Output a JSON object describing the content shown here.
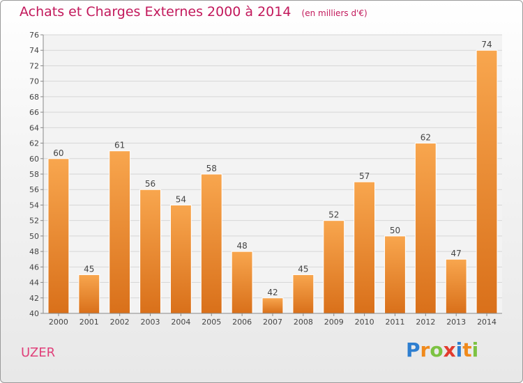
{
  "header": {
    "title": "Achats et Charges Externes 2000 à 2014",
    "subtitle": "(en milliers d'€)"
  },
  "footer": {
    "town": "UZER",
    "logo_letters": [
      "P",
      "r",
      "o",
      "x",
      "i",
      "t",
      "i"
    ],
    "logo_colors": [
      "#2f7fd0",
      "#f08a1c",
      "#7cc242",
      "#e23b2e",
      "#2f7fd0",
      "#f08a1c",
      "#7cc242"
    ]
  },
  "chart_data": {
    "type": "bar",
    "title": "Achats et Charges Externes 2000 à 2014",
    "subtitle": "(en milliers d'€)",
    "categories": [
      "2000",
      "2001",
      "2002",
      "2003",
      "2004",
      "2005",
      "2006",
      "2007",
      "2008",
      "2009",
      "2010",
      "2011",
      "2012",
      "2013",
      "2014"
    ],
    "values": [
      60,
      45,
      61,
      56,
      54,
      58,
      48,
      42,
      45,
      52,
      57,
      50,
      62,
      47,
      74
    ],
    "ylim": [
      40,
      76
    ],
    "yticks": [
      40,
      42,
      44,
      46,
      48,
      50,
      52,
      54,
      56,
      58,
      60,
      62,
      64,
      66,
      68,
      70,
      72,
      74,
      76
    ],
    "grid": true,
    "bar_color_top": "#f8a64e",
    "bar_color_bottom": "#d9701a"
  }
}
